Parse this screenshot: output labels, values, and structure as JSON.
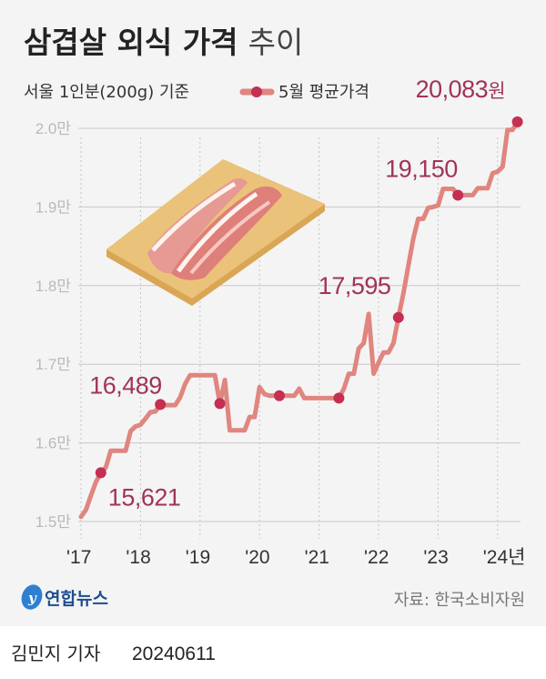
{
  "title": {
    "bold": "삼겹살 외식 가격",
    "light": "추이"
  },
  "subtitle": "서울 1인분(200g) 기준",
  "legend": {
    "label": "5월 평균가격",
    "line_color": "#e0857f",
    "dot_color": "#c42f52"
  },
  "colors": {
    "background": "#f4f4f4",
    "line": "#e0857f",
    "dot": "#c42f52",
    "label": "#a13456",
    "grid": "#c8c8c8"
  },
  "chart_data": {
    "type": "line",
    "title": "삼겹살 외식 가격 추이",
    "subtitle": "서울 1인분(200g) 기준",
    "xlabel": "",
    "ylabel": "",
    "x_start": "2017-01",
    "x_end": "2024-05",
    "x_frequency": "monthly",
    "ylim": [
      15000,
      20000
    ],
    "yticks": [
      {
        "value": 15000,
        "label": "1.5만"
      },
      {
        "value": 16000,
        "label": "1.6만"
      },
      {
        "value": 17000,
        "label": "1.7만"
      },
      {
        "value": 18000,
        "label": "1.8만"
      },
      {
        "value": 19000,
        "label": "1.9만"
      },
      {
        "value": 20000,
        "label": "2.0만"
      }
    ],
    "xticks": [
      {
        "year": 2017,
        "label": "'17"
      },
      {
        "year": 2018,
        "label": "'18"
      },
      {
        "year": 2019,
        "label": "'19"
      },
      {
        "year": 2020,
        "label": "'20"
      },
      {
        "year": 2021,
        "label": "'21"
      },
      {
        "year": 2022,
        "label": "'22"
      },
      {
        "year": 2023,
        "label": "'23"
      },
      {
        "year": 2024,
        "label": "'24년"
      }
    ],
    "grid": {
      "horizontal": true,
      "vertical": "dotted"
    },
    "legend_position": "top",
    "series": [
      {
        "name": "5월 평균가격",
        "values": [
          15060,
          15150,
          15330,
          15500,
          15621,
          15690,
          15900,
          15900,
          15900,
          15900,
          16150,
          16210,
          16230,
          16310,
          16390,
          16400,
          16489,
          16480,
          16480,
          16480,
          16580,
          16750,
          16860,
          16860,
          16860,
          16860,
          16860,
          16860,
          16500,
          16800,
          16160,
          16160,
          16160,
          16160,
          16330,
          16330,
          16710,
          16620,
          16600,
          16600,
          16600,
          16600,
          16600,
          16600,
          16690,
          16570,
          16570,
          16570,
          16570,
          16570,
          16570,
          16570,
          16570,
          16690,
          16880,
          16880,
          17200,
          17270,
          17640,
          16880,
          17020,
          17150,
          17150,
          17270,
          17595,
          17900,
          18250,
          18600,
          18850,
          18850,
          18990,
          19000,
          19020,
          19230,
          19230,
          19230,
          19150,
          19150,
          19150,
          19150,
          19240,
          19240,
          19240,
          19430,
          19450,
          19510,
          19980,
          19980,
          20083
        ]
      }
    ],
    "may_points": [
      {
        "year": 2017,
        "value": 15621,
        "label": "15,621"
      },
      {
        "year": 2018,
        "value": 16489,
        "label": "16,489"
      },
      {
        "year": 2019,
        "value": 16500,
        "label": ""
      },
      {
        "year": 2020,
        "value": 16600,
        "label": ""
      },
      {
        "year": 2021,
        "value": 16570,
        "label": ""
      },
      {
        "year": 2022,
        "value": 17595,
        "label": "17,595"
      },
      {
        "year": 2023,
        "value": 19150,
        "label": "19,150"
      },
      {
        "year": 2024,
        "value": 20083,
        "label": "20,083",
        "unit": "원"
      }
    ]
  },
  "footer": {
    "logo_text": "연합뉴스",
    "source": "자료: 한국소비자원"
  },
  "byline": {
    "reporter": "김민지 기자",
    "date": "20240611"
  }
}
